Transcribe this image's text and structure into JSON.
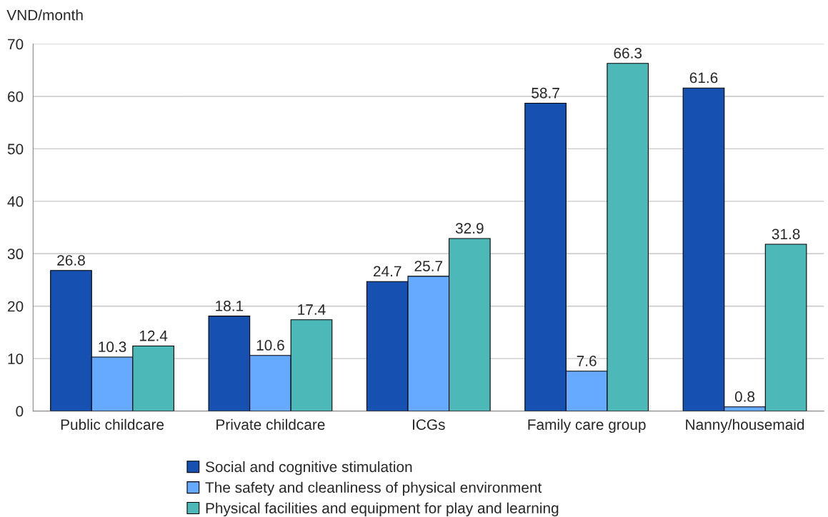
{
  "chart_data": {
    "type": "bar",
    "ylabel": "VND/month",
    "categories": [
      "Public childcare",
      "Private childcare",
      "ICGs",
      "Family care group",
      "Nanny/housemaid"
    ],
    "series": [
      {
        "name": "Social and cognitive stimulation",
        "color": "#1650b0",
        "values": [
          26.8,
          18.1,
          24.7,
          58.7,
          61.6
        ]
      },
      {
        "name": "The safety and cleanliness of physical environment",
        "color": "#66aaff",
        "values": [
          10.3,
          10.6,
          25.7,
          7.6,
          0.8
        ]
      },
      {
        "name": "Physical facilities and equipment for play and learning",
        "color": "#4db8b8",
        "values": [
          12.4,
          17.4,
          32.9,
          66.3,
          31.8
        ]
      }
    ],
    "ylim": [
      0,
      70
    ],
    "yticks": [
      0,
      10,
      20,
      30,
      40,
      50,
      60,
      70
    ],
    "grid": "y",
    "legend": "bottom",
    "data_labels": true
  }
}
